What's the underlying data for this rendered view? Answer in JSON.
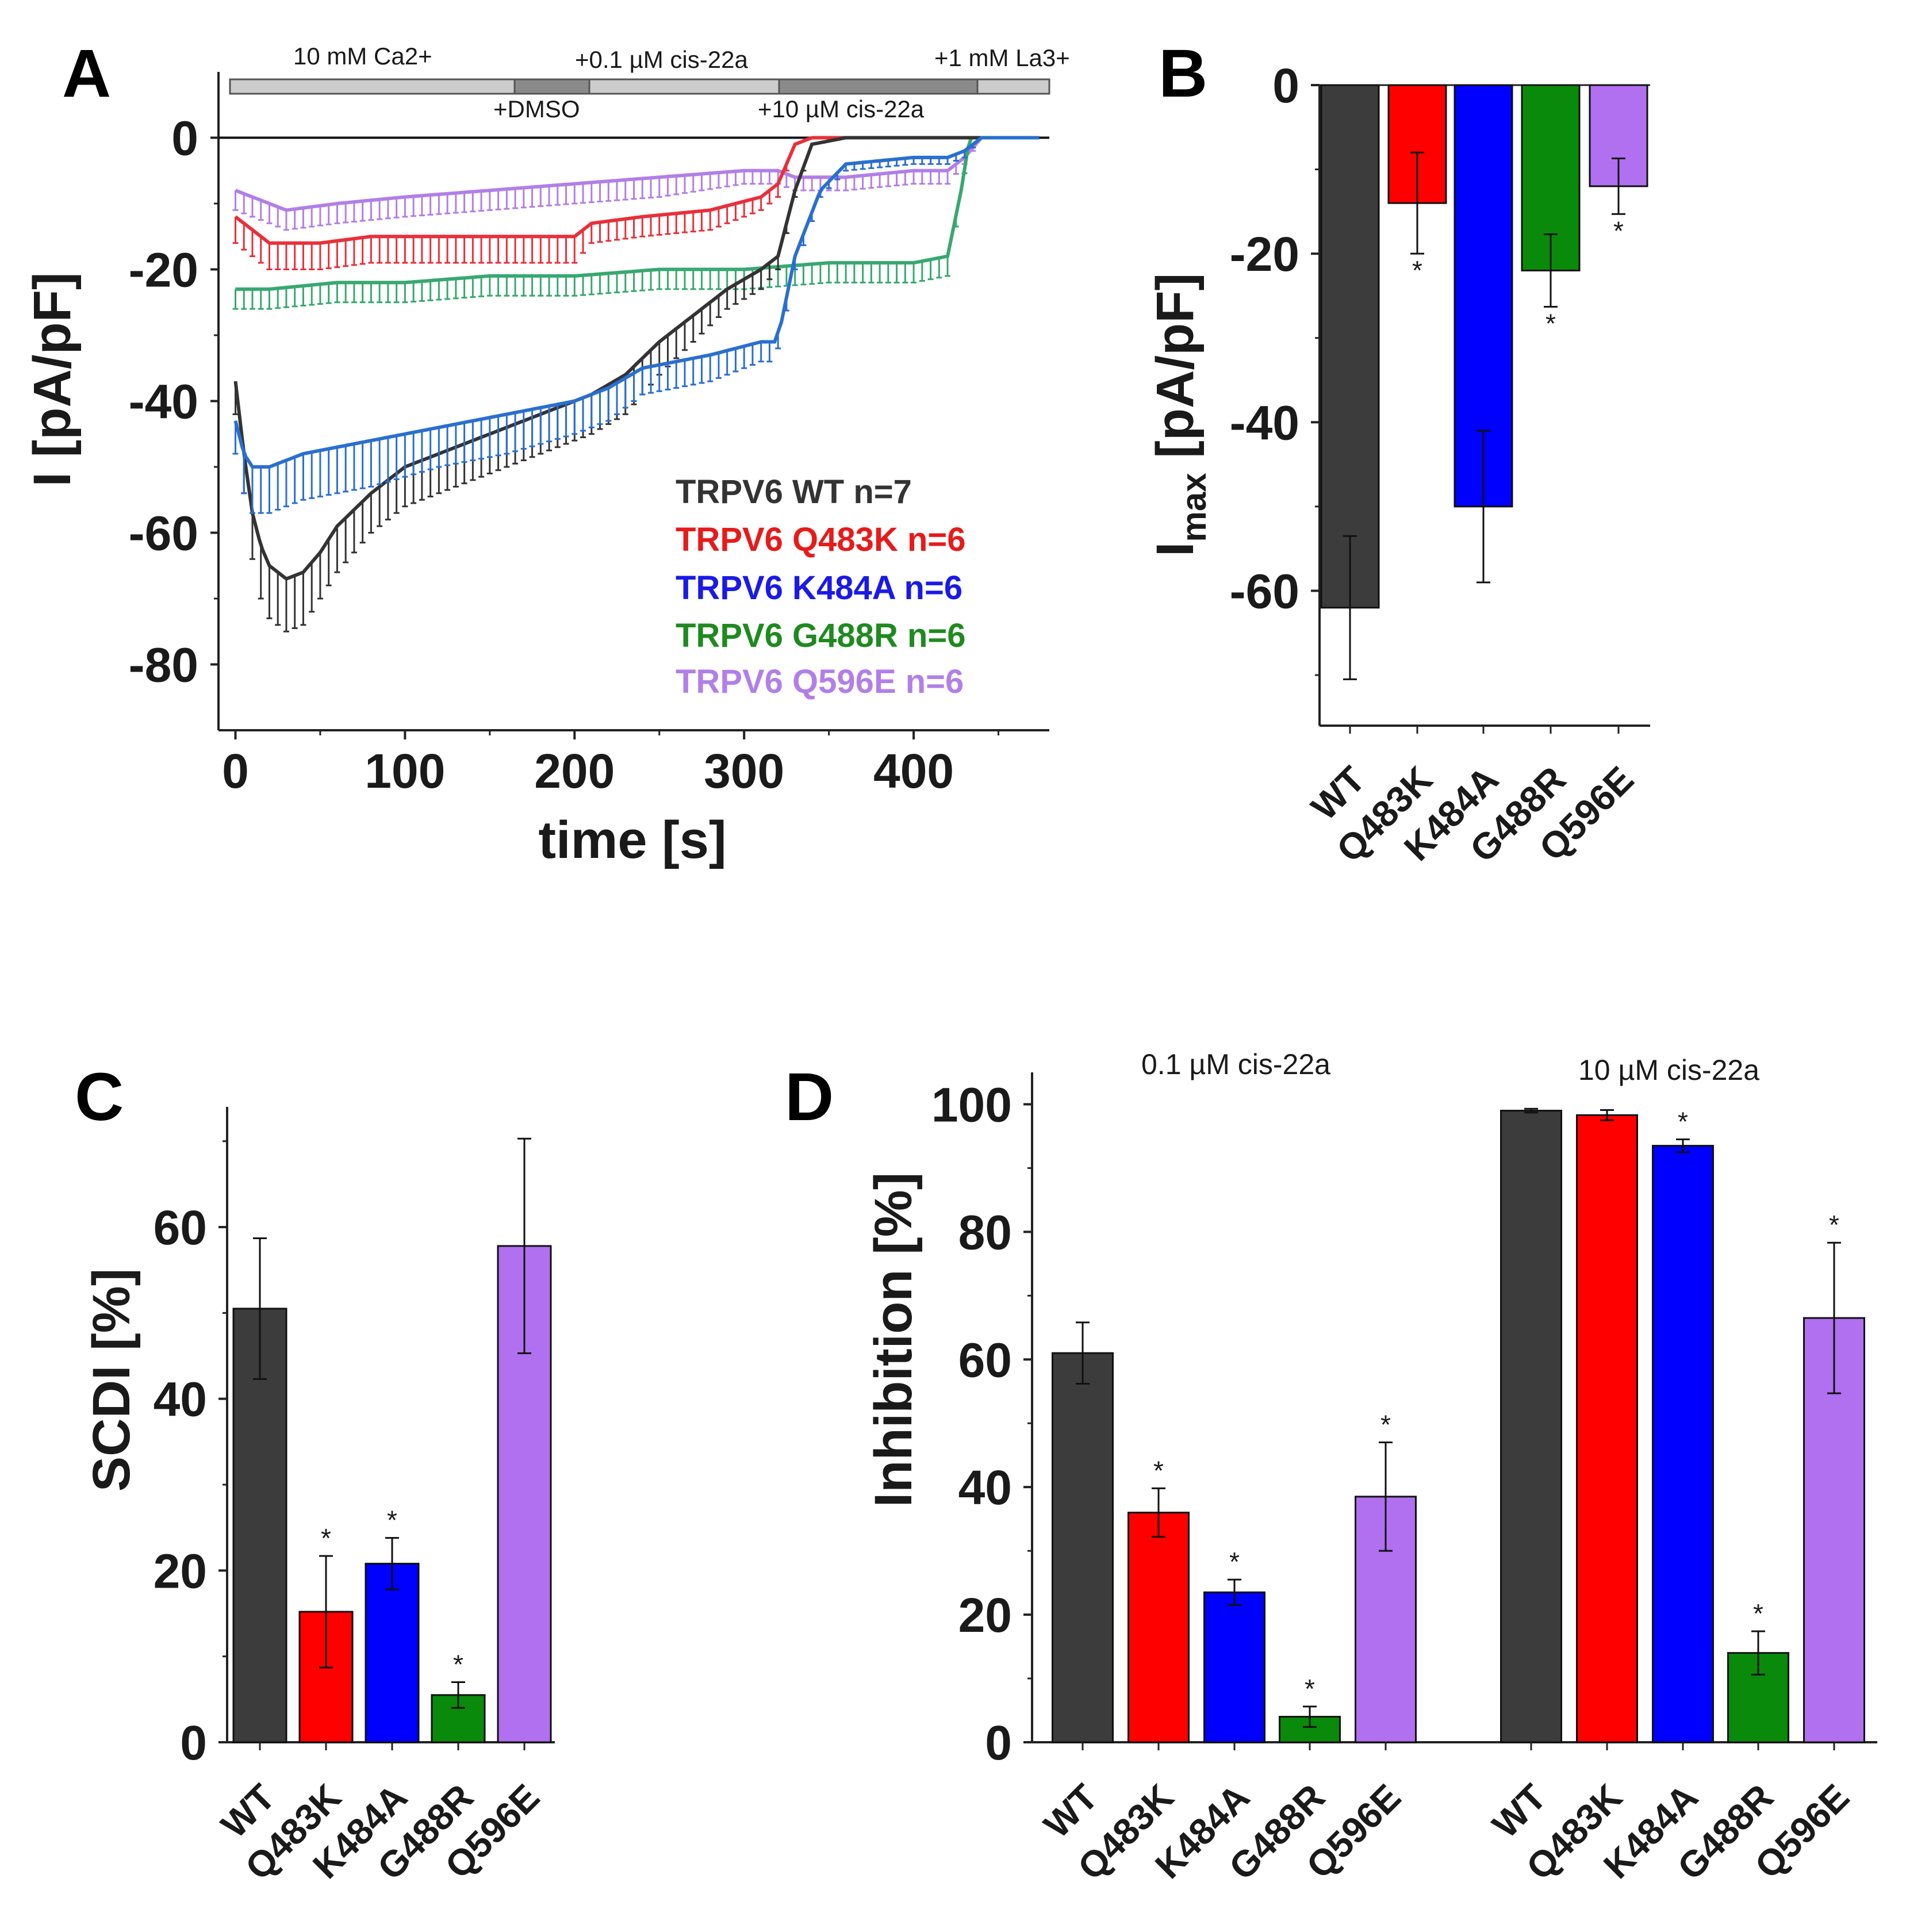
{
  "colors": {
    "WT": "#3c3c3c",
    "Q483K": "#ff0000",
    "K484A": "#0000ff",
    "G488R": "#0a8a0a",
    "Q596E": "#b070f0",
    "trace_WT": "#333333",
    "trace_Q483K": "#e8303a",
    "trace_K484A": "#2a6fd0",
    "trace_G488R": "#38a870",
    "trace_Q596E": "#b27fe8"
  },
  "chart_data": [
    {
      "id": "A",
      "panel_label": "A",
      "type": "line",
      "xlabel": "time [s]",
      "ylabel": "I [pA/pF]",
      "xlim": [
        -10,
        480
      ],
      "ylim": [
        -90,
        10
      ],
      "xticks": [
        "0",
        "100",
        "200",
        "300",
        "400"
      ],
      "yticks": [
        "0",
        "-20",
        "-40",
        "-60",
        "-80"
      ],
      "application_bars": {
        "labels": [
          "10 mM Ca2+",
          "+DMSO",
          "+0.1 µM cis-22a",
          "+10 µM cis-22a",
          "+1 mM La3+"
        ]
      },
      "series": [
        {
          "name": "TRPV6 WT n=7",
          "key": "WT",
          "x": [
            0,
            5,
            10,
            15,
            20,
            30,
            40,
            50,
            60,
            80,
            100,
            130,
            160,
            190,
            210,
            230,
            250,
            270,
            290,
            310,
            320,
            330,
            340,
            360,
            400,
            430,
            440,
            460,
            475
          ],
          "y": [
            -37,
            -48,
            -57,
            -62,
            -65,
            -67,
            -66,
            -63,
            -59,
            -54,
            -50,
            -47,
            -44,
            -41,
            -39,
            -36,
            -31,
            -27,
            -23,
            -20,
            -18,
            -8,
            -1,
            0,
            0,
            0,
            0,
            0,
            0
          ],
          "err": [
            5,
            6,
            7,
            8,
            8,
            8,
            8,
            7,
            7,
            6,
            6,
            6,
            6,
            6,
            6,
            6,
            5,
            4,
            3,
            3,
            2,
            1,
            0,
            0,
            0,
            0,
            0,
            0,
            0
          ]
        },
        {
          "name": "TRPV6 Q483K n=6",
          "key": "Q483K",
          "x": [
            0,
            10,
            20,
            30,
            50,
            80,
            120,
            160,
            200,
            210,
            240,
            280,
            310,
            320,
            325,
            330,
            340,
            360,
            400,
            430,
            440,
            460,
            475
          ],
          "y": [
            -12,
            -14,
            -16,
            -16,
            -16,
            -15,
            -15,
            -15,
            -15,
            -13,
            -12,
            -11,
            -9,
            -7,
            -4,
            -1,
            0,
            0,
            0,
            0,
            0,
            0,
            0
          ],
          "err": [
            4,
            4,
            4,
            4,
            4,
            4,
            4,
            4,
            4,
            3,
            3,
            3,
            2,
            2,
            1,
            0,
            0,
            0,
            0,
            0,
            0,
            0,
            0
          ]
        },
        {
          "name": "TRPV6 K484A n=6",
          "key": "K484A",
          "x": [
            0,
            5,
            10,
            20,
            40,
            80,
            120,
            160,
            200,
            220,
            240,
            280,
            310,
            318,
            322,
            330,
            345,
            360,
            400,
            420,
            430,
            440,
            460,
            475
          ],
          "y": [
            -43,
            -48,
            -50,
            -50,
            -48,
            -46,
            -44,
            -42,
            -40,
            -38,
            -35,
            -33,
            -31,
            -31,
            -28,
            -18,
            -8,
            -4,
            -3,
            -3,
            -2,
            0,
            0,
            0
          ],
          "err": [
            5,
            6,
            7,
            7,
            7,
            7,
            6,
            6,
            5,
            5,
            4,
            4,
            3,
            3,
            2,
            2,
            1,
            1,
            1,
            1,
            1,
            0,
            0,
            0
          ]
        },
        {
          "name": "TRPV6 G488R n=6",
          "key": "G488R",
          "x": [
            0,
            20,
            60,
            100,
            150,
            200,
            250,
            300,
            350,
            400,
            420,
            428,
            433,
            440,
            460,
            475
          ],
          "y": [
            -23,
            -23,
            -22,
            -22,
            -21,
            -21,
            -20,
            -20,
            -19,
            -19,
            -18,
            -8,
            0,
            0,
            0,
            0
          ],
          "err": [
            3,
            3,
            3,
            3,
            3,
            3,
            3,
            3,
            3,
            3,
            3,
            1,
            0,
            0,
            0,
            0
          ]
        },
        {
          "name": "TRPV6 Q596E n=6",
          "key": "Q596E",
          "x": [
            0,
            10,
            20,
            30,
            60,
            100,
            150,
            200,
            250,
            300,
            320,
            330,
            360,
            400,
            420,
            430,
            440,
            460,
            475
          ],
          "y": [
            -8,
            -9,
            -10,
            -11,
            -10,
            -9,
            -8,
            -7,
            -6,
            -5,
            -5,
            -6,
            -6,
            -5,
            -5,
            -3,
            0,
            0,
            0
          ],
          "err": [
            3,
            3,
            3,
            3,
            3,
            3,
            3,
            3,
            3,
            2,
            2,
            2,
            2,
            2,
            2,
            1,
            0,
            0,
            0
          ]
        }
      ]
    },
    {
      "id": "B",
      "panel_label": "B",
      "type": "bar",
      "ylabel_main": "I",
      "ylabel_sub": "max",
      "ylabel_unit": " [pA/pF]",
      "ylim": [
        -76,
        0
      ],
      "yticks": [
        "0",
        "-20",
        "-40",
        "-60"
      ],
      "categories": [
        "WT",
        "Q483K",
        "K484A",
        "G488R",
        "Q596E"
      ],
      "values": [
        -62,
        -14,
        -50,
        -22,
        -12
      ],
      "errors": [
        8.5,
        6,
        9,
        4.3,
        3.3
      ],
      "significant": [
        false,
        true,
        false,
        true,
        true
      ]
    },
    {
      "id": "C",
      "panel_label": "C",
      "type": "bar",
      "ylabel": "SCDI [%]",
      "ylim": [
        0,
        74
      ],
      "yticks": [
        "0",
        "20",
        "40",
        "60"
      ],
      "categories": [
        "WT",
        "Q483K",
        "K484A",
        "G488R",
        "Q596E"
      ],
      "values": [
        50.5,
        15.2,
        20.8,
        5.5,
        57.8
      ],
      "errors": [
        8.2,
        6.5,
        3,
        1.5,
        12.5
      ],
      "significant": [
        false,
        true,
        true,
        true,
        false
      ]
    },
    {
      "id": "D",
      "panel_label": "D",
      "type": "bar",
      "ylabel": "Inhibition [%]",
      "ylim": [
        0,
        105
      ],
      "yticks": [
        "0",
        "20",
        "40",
        "60",
        "80",
        "100"
      ],
      "groups": [
        {
          "label": "0.1 µM cis-22a",
          "categories": [
            "WT",
            "Q483K",
            "K484A",
            "G488R",
            "Q596E"
          ],
          "values": [
            61,
            36,
            23.5,
            4,
            38.5
          ],
          "errors": [
            4.8,
            3.8,
            2,
            1.6,
            8.5
          ],
          "significant": [
            false,
            true,
            true,
            true,
            true
          ]
        },
        {
          "label": "10 µM cis-22a",
          "categories": [
            "WT",
            "Q483K",
            "K484A",
            "G488R",
            "Q596E"
          ],
          "values": [
            99,
            98.3,
            93.5,
            14,
            66.5
          ],
          "errors": [
            0.3,
            0.8,
            1,
            3.4,
            11.8
          ],
          "significant": [
            false,
            false,
            true,
            true,
            true
          ]
        }
      ]
    }
  ]
}
